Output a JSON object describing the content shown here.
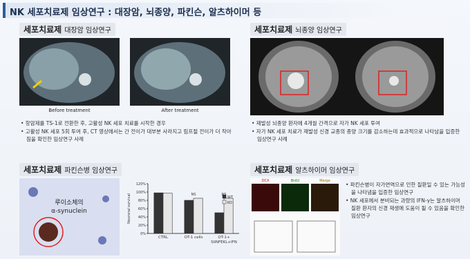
{
  "title": "NK 세포치료제 임상연구 : 대장암, 뇌종양, 파킨슨, 알츠하이머 등",
  "sections": [
    {
      "heading": "세포치료제",
      "subheading": "대장암 임상연구",
      "captions": [
        "Before treatment",
        "After treatment"
      ],
      "bullets": [
        "항암제를 TS-1로 전환한 후, 고활성 NK 세포 치료를 시작한 경우",
        "고활성 NK 세포 5회 투여 후, CT 영상에서는 간 전이가 대부분 사라지고 림프절 전이가 더 작아짐을 확인한 임상연구 사례"
      ]
    },
    {
      "heading": "세포치료제",
      "subheading": "뇌종양 임상연구",
      "bullets": [
        "재발성 뇌종양 환자에 4개월 간격으로 자가 NK 세포 투여",
        "자가 NK 세포 치료가 재발성 신경 교종의 종양 크기를 감소하는데 효과적으로 나타남을 입증한 임상연구 사례"
      ]
    },
    {
      "heading": "세포치료제",
      "subheading": "파킨슨병 임상연구",
      "image_label": [
        "루이소체의",
        "α-synuclein"
      ]
    },
    {
      "heading": "세포치료제",
      "subheading": "알츠하이머 임상연구",
      "image_labels": [
        "DCX",
        "BrdU",
        "Merge"
      ],
      "bullets": [
        "파킨슨병이 자가면역으로 인한 질환일 수 있는 가능성을 나타냄을 입증한 임상연구",
        "NK 세포에서 분비되는 과량의 IFN-γ는 알츠하이머 질환 환자의 신경 재생에 도움이 될 수 있음을 확인한 임상연구"
      ]
    }
  ],
  "chart": {
    "type": "bar",
    "ylabel": "Neuronal survival",
    "categories": [
      "CTRL",
      "OT-1 cells",
      "OT-1+ SIINFEKL+IFN"
    ],
    "series": [
      {
        "name": "WT",
        "color": "#333333",
        "values": [
          98,
          80,
          50
        ]
      },
      {
        "name": "KO",
        "color": "#e6e6e6",
        "values": [
          97,
          85,
          85
        ]
      }
    ],
    "annotations": [
      "NS",
      "NS"
    ],
    "ylim": [
      0,
      120
    ],
    "yticks": [
      {
        "value": 0,
        "label": "0%"
      },
      {
        "value": 20,
        "label": "20%"
      },
      {
        "value": 40,
        "label": "40%"
      },
      {
        "value": 60,
        "label": "60%"
      },
      {
        "value": 80,
        "label": "80%"
      },
      {
        "value": 100,
        "label": "100%"
      },
      {
        "value": 120,
        "label": "120%"
      }
    ]
  }
}
